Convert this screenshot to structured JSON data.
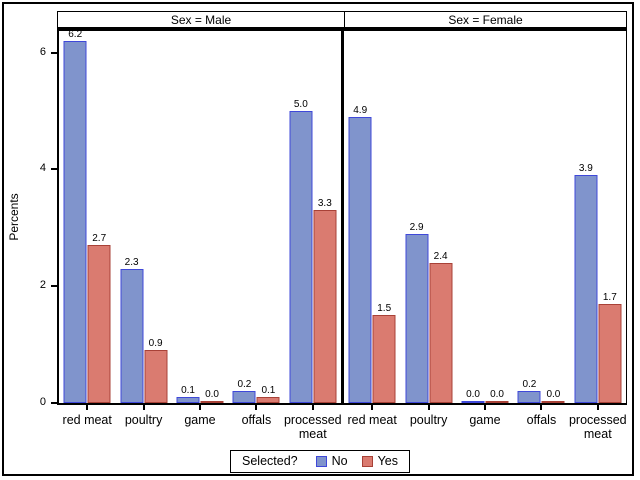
{
  "chart_data": {
    "type": "bar",
    "ylabel": "Percents",
    "yticks": [
      0,
      2,
      4,
      6
    ],
    "ylim": [
      0,
      6.37
    ],
    "grid": false,
    "legend": {
      "title": "Selected?",
      "position": "bottom"
    },
    "series_names": [
      "No",
      "Yes"
    ],
    "series_colors": [
      {
        "name": "No",
        "fill": "#8094CC",
        "border": "#3F48D9"
      },
      {
        "name": "Yes",
        "fill": "#DA7B70",
        "border": "#A84137"
      }
    ],
    "categories": [
      "red meat",
      "poultry",
      "game",
      "offals",
      "processed meat"
    ],
    "panels": [
      {
        "title": "Sex = Male",
        "series": [
          {
            "name": "No",
            "values": [
              6.2,
              2.3,
              0.1,
              0.2,
              5.0
            ]
          },
          {
            "name": "Yes",
            "values": [
              2.7,
              0.9,
              0.0,
              0.1,
              3.3
            ]
          }
        ]
      },
      {
        "title": "Sex = Female",
        "series": [
          {
            "name": "No",
            "values": [
              4.9,
              2.9,
              0.0,
              0.2,
              3.9
            ]
          },
          {
            "name": "Yes",
            "values": [
              1.5,
              2.4,
              0.0,
              0.0,
              1.7
            ]
          }
        ]
      }
    ]
  }
}
